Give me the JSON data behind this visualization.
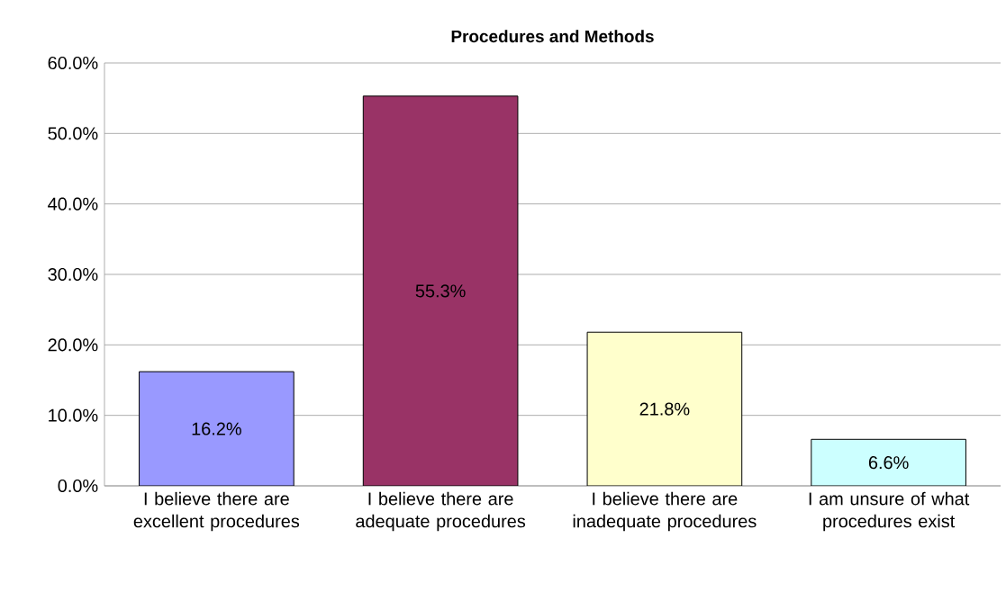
{
  "chart_data": {
    "type": "bar",
    "title": "Procedures and Methods",
    "categories": [
      "I believe there are excellent procedures",
      "I believe there are adequate procedures",
      "I believe there are inadequate procedures",
      "I am unsure of what procedures exist"
    ],
    "values": [
      16.2,
      55.3,
      21.8,
      6.6
    ],
    "colors": [
      "#9999ff",
      "#993366",
      "#ffffcc",
      "#ccffff"
    ],
    "value_labels": [
      "16.2%",
      "55.3%",
      "21.8%",
      "6.6%"
    ],
    "ylim": [
      0,
      60
    ],
    "yticks": [
      {
        "value": 0,
        "label": "0.0%"
      },
      {
        "value": 10,
        "label": "10.0%"
      },
      {
        "value": 20,
        "label": "20.0%"
      },
      {
        "value": 30,
        "label": "30.0%"
      },
      {
        "value": 40,
        "label": "40.0%"
      },
      {
        "value": 50,
        "label": "50.0%"
      },
      {
        "value": 60,
        "label": "60.0%"
      }
    ],
    "grid": "y"
  }
}
